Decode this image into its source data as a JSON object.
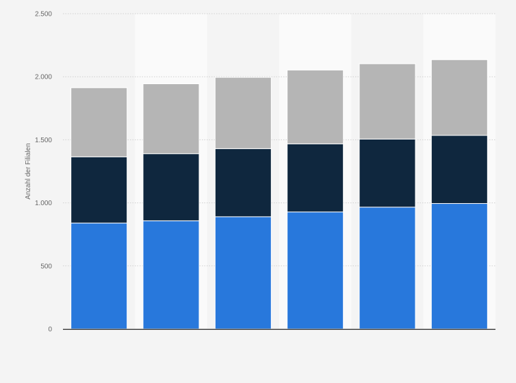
{
  "chart_data": {
    "type": "bar",
    "stacked": true,
    "categories": [
      "",
      "",
      "",
      "",
      "",
      ""
    ],
    "series": [
      {
        "color": "#2878dc",
        "values": [
          840,
          858,
          890,
          928,
          966,
          995
        ]
      },
      {
        "color": "#0f273e",
        "values": [
          525,
          532,
          540,
          540,
          540,
          540
        ]
      },
      {
        "color": "#b5b5b5",
        "values": [
          548,
          554,
          565,
          585,
          597,
          600
        ]
      }
    ],
    "title": "",
    "xlabel": "",
    "ylabel": "Anzahl der Filialen",
    "ylim": [
      0,
      2500
    ],
    "yticks": [
      {
        "value": 0,
        "label": "0"
      },
      {
        "value": 500,
        "label": "500"
      },
      {
        "value": 1000,
        "label": "1.000"
      },
      {
        "value": 1500,
        "label": "1.500"
      },
      {
        "value": 2000,
        "label": "2.000"
      },
      {
        "value": 2500,
        "label": "2.500"
      }
    ],
    "grid": true,
    "legend": "none"
  }
}
